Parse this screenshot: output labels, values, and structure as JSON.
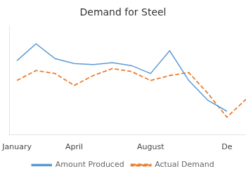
{
  "chart_data": {
    "type": "line",
    "title": "Demand for Steel",
    "x": [
      0,
      1,
      2,
      3,
      4,
      5,
      6,
      7,
      8,
      9,
      10,
      11,
      12
    ],
    "series": [
      {
        "name": "Amount Produced",
        "color": "#5B9BD5",
        "line_style": "solid",
        "values": [
          75,
          92,
          77,
          72,
          71,
          73,
          70,
          62,
          85,
          55,
          35,
          24,
          null
        ]
      },
      {
        "name": "Actual Demand",
        "color": "#ED7D31",
        "line_style": "dashed",
        "values": [
          55,
          65,
          62,
          50,
          60,
          67,
          64,
          55,
          60,
          63,
          42,
          18,
          36
        ]
      }
    ],
    "xlim": [
      -0.4,
      12.0
    ],
    "xticks": [
      {
        "value": 0,
        "label": "January"
      },
      {
        "value": 3,
        "label": "April"
      },
      {
        "value": 7,
        "label": "August"
      },
      {
        "value": 11,
        "label": "De"
      }
    ],
    "ylim": [
      0,
      110
    ],
    "yticks": [],
    "tick_labels": "x",
    "grid": false,
    "legend": "bottom"
  }
}
